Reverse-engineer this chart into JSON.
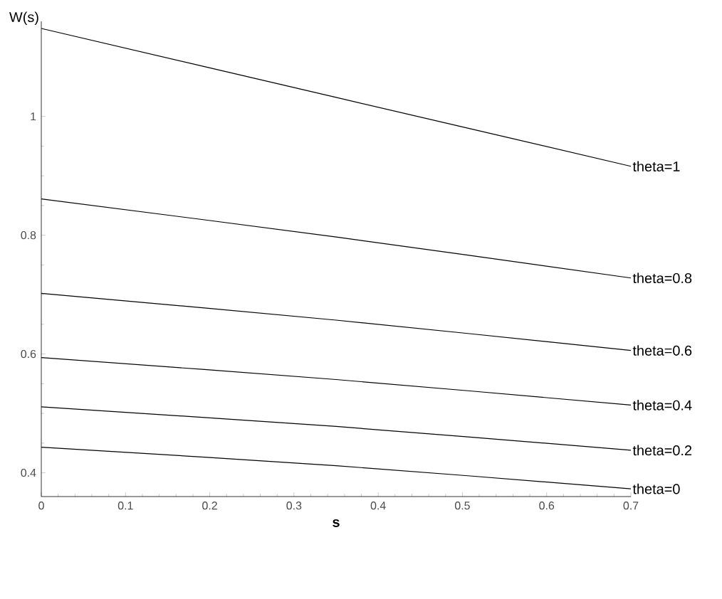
{
  "chart_data": {
    "type": "line",
    "xlabel": "s",
    "ylabel": "W(s)",
    "x": [
      0,
      0.35,
      0.7
    ],
    "series": [
      {
        "name": "theta=1",
        "color": "#000000",
        "values": [
          1.148,
          1.032,
          0.916
        ]
      },
      {
        "name": "theta=0.8",
        "color": "#000000",
        "values": [
          0.861,
          0.797,
          0.728
        ]
      },
      {
        "name": "theta=0.6",
        "color": "#000000",
        "values": [
          0.702,
          0.657,
          0.606
        ]
      },
      {
        "name": "theta=0.4",
        "color": "#000000",
        "values": [
          0.594,
          0.557,
          0.514
        ]
      },
      {
        "name": "theta=0.2",
        "color": "#000000",
        "values": [
          0.511,
          0.478,
          0.438
        ]
      },
      {
        "name": "theta=0",
        "color": "#000000",
        "values": [
          0.443,
          0.412,
          0.373
        ]
      }
    ],
    "xlim": [
      0,
      0.7
    ],
    "ylim": [
      0.36,
      1.16
    ],
    "xticks": [
      0,
      0.1,
      0.2,
      0.3,
      0.4,
      0.5,
      0.6,
      0.7
    ],
    "yticks": [
      0.4,
      0.6,
      0.8,
      1
    ],
    "grid": false,
    "legend": false,
    "marker": "none",
    "line_style": "solid"
  }
}
